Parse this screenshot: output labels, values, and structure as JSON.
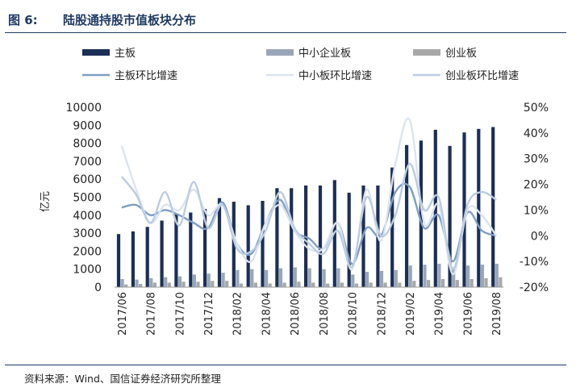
{
  "header": {
    "figure_label": "图 6:",
    "title": "陆股通持股市值板块分布"
  },
  "source": "资料来源：Wind、国信证券经济研究所整理",
  "colors": {
    "main_bar": "#1b2f57",
    "sme_bar": "#9aa6b8",
    "gem_bar": "#a8a8a8",
    "main_line": "#7f9ec6",
    "sme_line": "#dce4ef",
    "gem_line": "#bccce2",
    "rule": "#1f3a64"
  },
  "chart_data": {
    "type": "bar",
    "title": "陆股通持股市值板块分布",
    "ylabel": "亿元",
    "ylim": [
      0,
      10000
    ],
    "y_ticks": [
      "0",
      "1000",
      "2000",
      "3000",
      "4000",
      "5000",
      "6000",
      "7000",
      "8000",
      "9000",
      "10000"
    ],
    "y2lim": [
      -20,
      50
    ],
    "y2_ticks": [
      "-20%",
      "-10%",
      "0%",
      "10%",
      "20%",
      "30%",
      "40%",
      "50%"
    ],
    "x_tick_labels": [
      "2017/06",
      "2017/08",
      "2017/10",
      "2017/12",
      "2018/02",
      "2018/04",
      "2018/06",
      "2018/08",
      "2018/10",
      "2018/12",
      "2019/02",
      "2019/04",
      "2019/06",
      "2019/08"
    ],
    "categories": [
      "2017/06",
      "2017/07",
      "2017/08",
      "2017/09",
      "2017/10",
      "2017/11",
      "2017/12",
      "2018/01",
      "2018/02",
      "2018/03",
      "2018/04",
      "2018/05",
      "2018/06",
      "2018/07",
      "2018/08",
      "2018/09",
      "2018/10",
      "2018/11",
      "2018/12",
      "2019/01",
      "2019/02",
      "2019/03",
      "2019/04",
      "2019/05",
      "2019/06",
      "2019/07",
      "2019/08"
    ],
    "legend_position": "top",
    "series": [
      {
        "name": "主板",
        "kind": "bar",
        "axis": "left",
        "values": [
          2950,
          3100,
          3350,
          3700,
          4050,
          4150,
          4350,
          4950,
          4750,
          4550,
          4800,
          5500,
          5500,
          5650,
          5650,
          5950,
          5250,
          5650,
          5650,
          6650,
          7900,
          8150,
          8750,
          7850,
          8600,
          8800,
          8900
        ]
      },
      {
        "name": "中小企业板",
        "kind": "bar",
        "axis": "left",
        "values": [
          450,
          420,
          500,
          550,
          600,
          700,
          750,
          800,
          950,
          1000,
          950,
          1050,
          1100,
          1050,
          1000,
          1050,
          700,
          850,
          900,
          950,
          1200,
          1250,
          1300,
          1100,
          1200,
          1250,
          1300
        ]
      },
      {
        "name": "创业板",
        "kind": "bar",
        "axis": "left",
        "values": [
          150,
          180,
          250,
          250,
          300,
          300,
          350,
          350,
          200,
          250,
          200,
          250,
          300,
          250,
          200,
          250,
          200,
          250,
          250,
          250,
          350,
          400,
          450,
          400,
          450,
          500,
          550
        ]
      },
      {
        "name": "主板环比增速",
        "kind": "line",
        "axis": "right",
        "values": [
          11,
          12,
          8,
          10,
          8,
          5,
          3,
          13,
          -3,
          -7,
          5,
          14,
          2,
          -1,
          -5,
          5,
          -11,
          3,
          0,
          17,
          19,
          3,
          8,
          -10,
          9,
          2,
          0
        ]
      },
      {
        "name": "中小板环比增速",
        "kind": "line",
        "axis": "right",
        "values": [
          35,
          18,
          5,
          12,
          10,
          18,
          8,
          12,
          -3,
          -10,
          5,
          12,
          2,
          -5,
          -5,
          5,
          -13,
          18,
          -2,
          28,
          45,
          5,
          12,
          -15,
          10,
          8,
          0
        ]
      },
      {
        "name": "创业板环比增速",
        "kind": "line",
        "axis": "right",
        "values": [
          23,
          16,
          5,
          17,
          4,
          21,
          3,
          12,
          -5,
          -6,
          2,
          17,
          3,
          -3,
          -7,
          2,
          -12,
          15,
          0,
          8,
          28,
          10,
          15,
          -13,
          12,
          17,
          14
        ]
      }
    ]
  }
}
